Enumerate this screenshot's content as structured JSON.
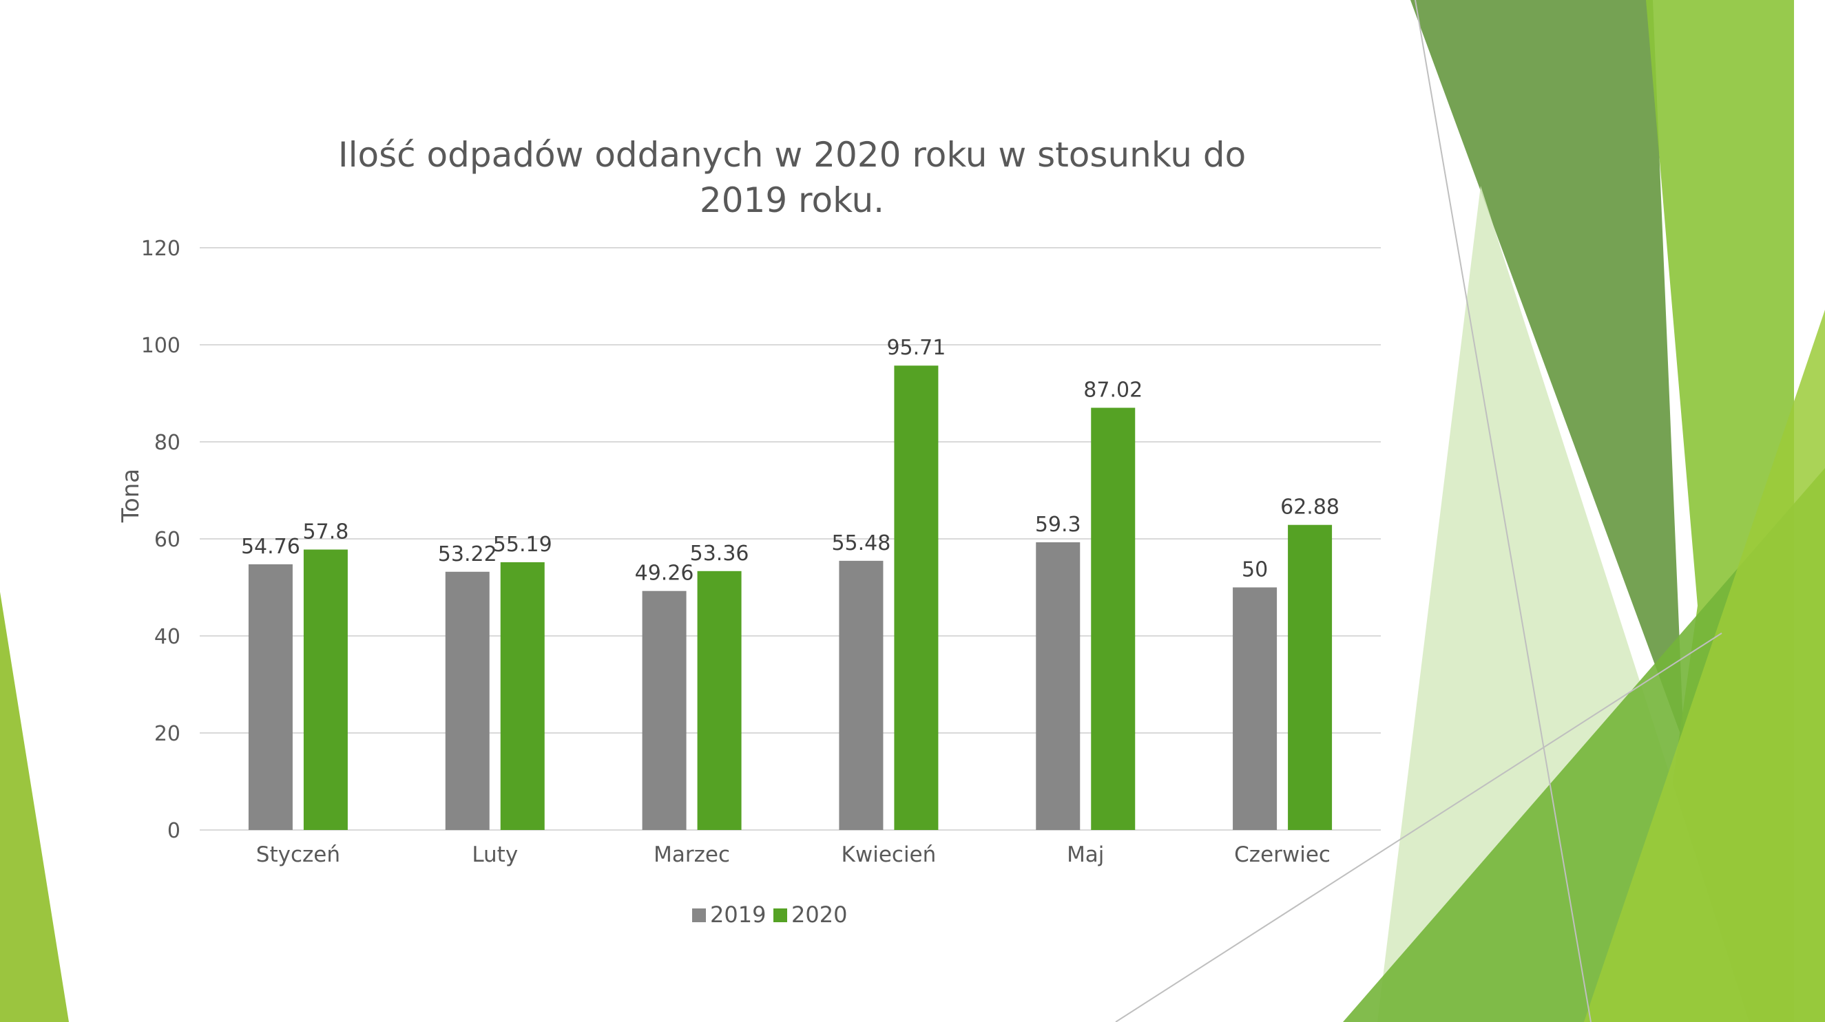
{
  "chart_data": {
    "type": "bar",
    "title": "Ilość odpadów oddanych w 2020 roku w stosunku do 2019 roku.",
    "ylabel": "Tona",
    "xlabel": "",
    "ylim": [
      0,
      120
    ],
    "yticks": [
      0,
      20,
      40,
      60,
      80,
      100,
      120
    ],
    "categories": [
      "Styczeń",
      "Luty",
      "Marzec",
      "Kwiecień",
      "Maj",
      "Czerwiec"
    ],
    "series": [
      {
        "name": "2019",
        "values": [
          54.76,
          53.22,
          49.26,
          55.48,
          59.3,
          50
        ],
        "labels": [
          "54.76",
          "53.22",
          "49.26",
          "55.48",
          "59.3",
          "50"
        ],
        "color": "#878787"
      },
      {
        "name": "2020",
        "values": [
          57.8,
          55.19,
          53.36,
          95.71,
          87.02,
          62.88
        ],
        "labels": [
          "57.8",
          "55.19",
          "53.36",
          "95.71",
          "87.02",
          "62.88"
        ],
        "color": "#55A224"
      }
    ],
    "grid": true,
    "legend": "bottom-center",
    "data_labels": true
  },
  "theme": {
    "accent_dark": "#6B9A45",
    "accent_light": "#8DC63F",
    "accent_pale": "#D8EBC0"
  }
}
